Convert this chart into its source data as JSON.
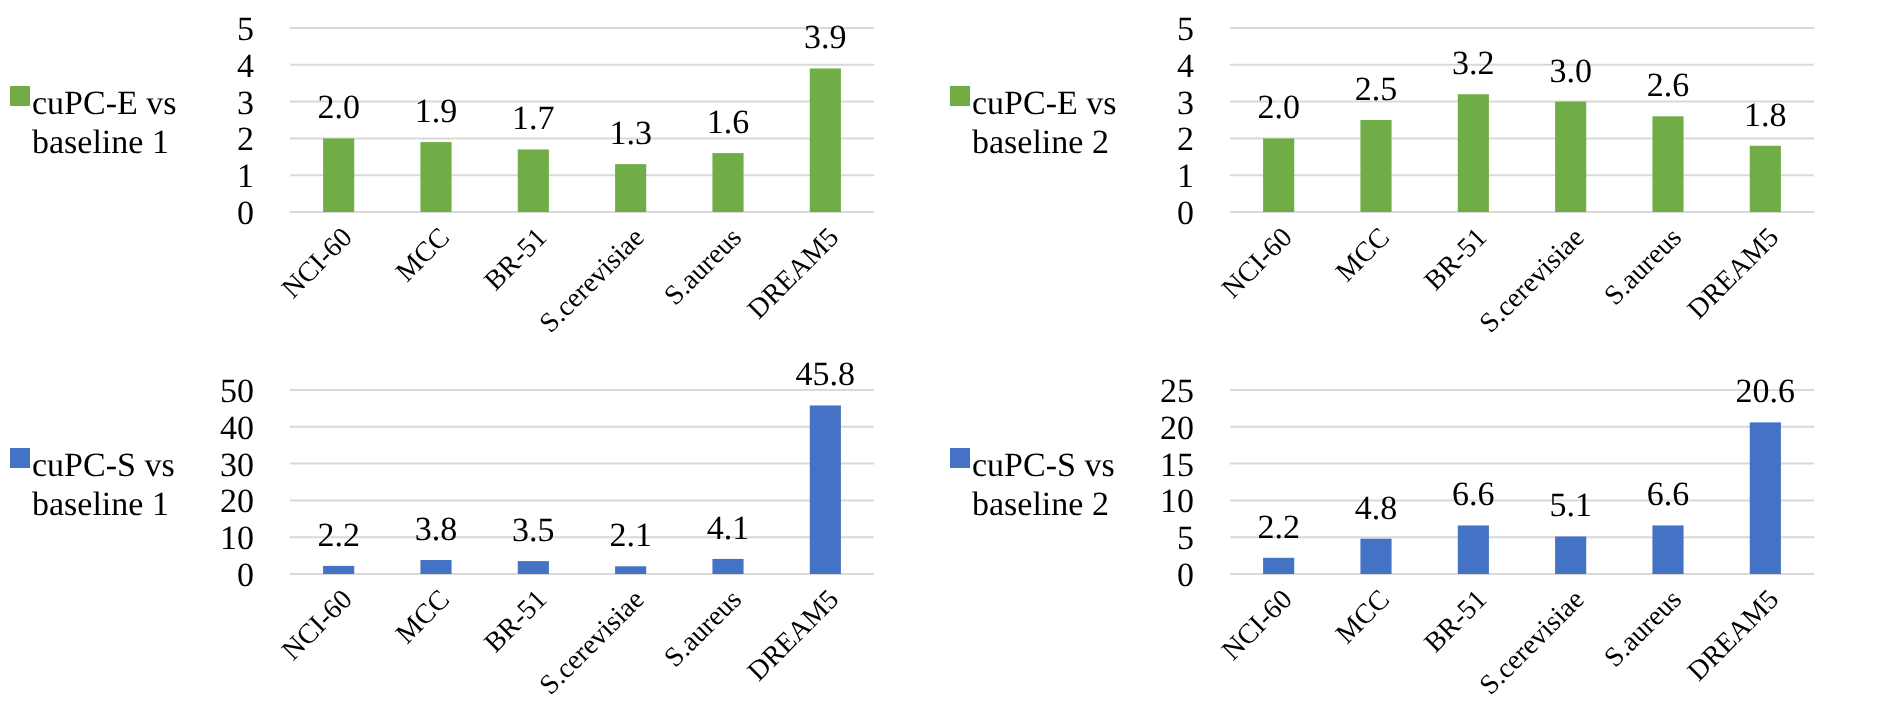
{
  "chart_data": [
    {
      "type": "bar",
      "categories": [
        "NCI-60",
        "MCC",
        "BR-51",
        "S.cerevisiae",
        "S.aureus",
        "DREAM5"
      ],
      "series": [
        {
          "name": "cuPC-E vs baseline 1",
          "color": "#70ad47",
          "values": [
            2.0,
            1.9,
            1.7,
            1.3,
            1.6,
            3.9
          ],
          "value_labels": [
            "2.0",
            "1.9",
            "1.7",
            "1.3",
            "1.6",
            "3.9"
          ]
        }
      ],
      "ylim": [
        0,
        5
      ],
      "yticks": [
        0,
        1,
        2,
        3,
        4,
        5
      ],
      "grid": "y",
      "legend": "left"
    },
    {
      "type": "bar",
      "categories": [
        "NCI-60",
        "MCC",
        "BR-51",
        "S.cerevisiae",
        "S.aureus",
        "DREAM5"
      ],
      "series": [
        {
          "name": "cuPC-E vs baseline 2",
          "color": "#70ad47",
          "values": [
            2.0,
            2.5,
            3.2,
            3.0,
            2.6,
            1.8
          ],
          "value_labels": [
            "2.0",
            "2.5",
            "3.2",
            "3.0",
            "2.6",
            "1.8"
          ]
        }
      ],
      "ylim": [
        0,
        5
      ],
      "yticks": [
        0,
        1,
        2,
        3,
        4,
        5
      ],
      "grid": "y",
      "legend": "left"
    },
    {
      "type": "bar",
      "categories": [
        "NCI-60",
        "MCC",
        "BR-51",
        "S.cerevisiae",
        "S.aureus",
        "DREAM5"
      ],
      "series": [
        {
          "name": "cuPC-S vs baseline 1",
          "color": "#4472c4",
          "values": [
            2.2,
            3.8,
            3.5,
            2.1,
            4.1,
            45.8
          ],
          "value_labels": [
            "2.2",
            "3.8",
            "3.5",
            "2.1",
            "4.1",
            "45.8"
          ]
        }
      ],
      "ylim": [
        0,
        50
      ],
      "yticks": [
        0,
        10,
        20,
        30,
        40,
        50
      ],
      "grid": "y",
      "legend": "left"
    },
    {
      "type": "bar",
      "categories": [
        "NCI-60",
        "MCC",
        "BR-51",
        "S.cerevisiae",
        "S.aureus",
        "DREAM5"
      ],
      "series": [
        {
          "name": "cuPC-S vs baseline 2",
          "color": "#4472c4",
          "values": [
            2.2,
            4.8,
            6.6,
            5.1,
            6.6,
            20.6
          ],
          "value_labels": [
            "2.2",
            "4.8",
            "6.6",
            "5.1",
            "6.6",
            "20.6"
          ]
        }
      ],
      "ylim": [
        0,
        25
      ],
      "yticks": [
        0,
        5,
        10,
        15,
        20,
        25
      ],
      "grid": "y",
      "legend": "left"
    }
  ]
}
